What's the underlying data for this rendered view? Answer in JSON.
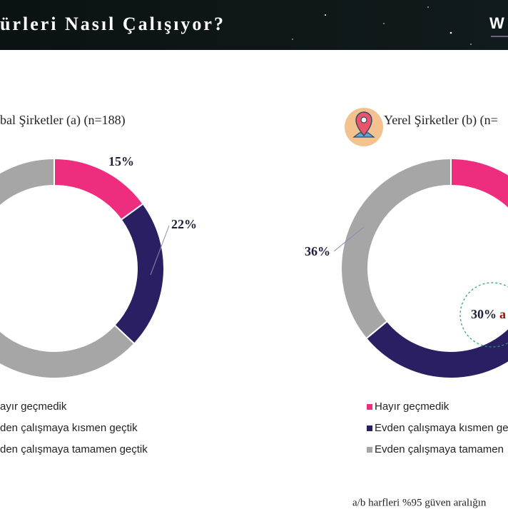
{
  "header": {
    "title": "ürleri Nasıl Çalışıyor?",
    "logo": "W"
  },
  "chart_data": [
    {
      "type": "donut",
      "title": "bal Şirketler (a) (n=188)",
      "categories": [
        "ayır geçmedik",
        "den çalışmaya kısmen geçtik",
        "den çalışmaya tamamen geçtik"
      ],
      "values": [
        15,
        22,
        63
      ],
      "value_labels": [
        "15%",
        "22%",
        null
      ],
      "colors": [
        "#ef2d7e",
        "#2a1f63",
        "#a6a6a6"
      ]
    },
    {
      "type": "donut",
      "title": "Yerel Şirketler (b) (n=",
      "categories": [
        "Hayır geçmedik",
        "Evden çalışmaya kısmen ge",
        "Evden çalışmaya tamamen"
      ],
      "values": [
        34,
        30,
        36
      ],
      "value_labels": [
        null,
        "30%",
        "36%"
      ],
      "annotation": "a",
      "colors": [
        "#ef2d7e",
        "#2a1f63",
        "#a6a6a6"
      ]
    }
  ],
  "footnote": "a/b harfleri %95 güven aralığın"
}
